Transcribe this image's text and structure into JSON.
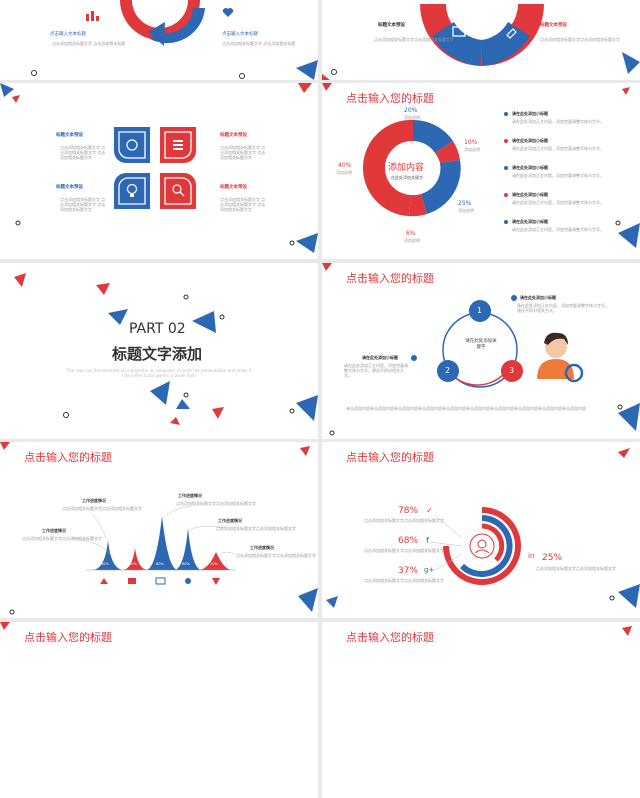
{
  "slide1": {
    "left_label": "点击输入文本标题",
    "right_label": "点击输入文本标题",
    "left_desc": "点击添加相关标题文字 点击添加相关标题",
    "right_desc": "点击添加相关标题文字 点击添加相关标题"
  },
  "slide2": {
    "left_heading": "标题文本预设",
    "left_body": "点击添加相关标题文字点击添加相关标题文字",
    "right_heading": "标题文本预设",
    "right_body": "点击添加相关标题文字点击添加相关标题文字"
  },
  "slide3": {
    "items": [
      {
        "heading": "标题文本预设",
        "body": "点击添加相关标题文字 点击添加相关标题文字 点击添加相关标题文字"
      },
      {
        "heading": "标题文本预设",
        "body": "点击添加相关标题文字 点击添加相关标题文字 点击添加相关标题文字"
      },
      {
        "heading": "标题文本预设",
        "body": "点击添加相关标题文字 点击添加相关标题文字 点击添加相关标题文字"
      },
      {
        "heading": "标题文本预设",
        "body": "点击添加相关标题文字 点击添加相关标题文字 点击添加相关标题文字"
      }
    ]
  },
  "slide4": {
    "title": "点击输入您的标题",
    "center_title": "添加内容",
    "center_sub": "在此处添加关键字",
    "slices": [
      {
        "pct": "20%",
        "label": "添加说明"
      },
      {
        "pct": "10%",
        "label": "添加说明"
      },
      {
        "pct": "25%",
        "label": "添加说明"
      },
      {
        "pct": "6%",
        "label": "添加说明"
      },
      {
        "pct": "40%",
        "label": "添加说明"
      }
    ],
    "list": [
      {
        "heading": "请在此处添加小标题",
        "body": "请在此处添加正文内容，添加完要调整字体与字号。"
      },
      {
        "heading": "请在此处添加小标题",
        "body": "请在此处添加正文内容，添加完要调整字体与字号。"
      },
      {
        "heading": "请在此处添加小标题",
        "body": "请在此处添加正文内容，添加完要调整字体与字号。"
      },
      {
        "heading": "请在此处添加小标题",
        "body": "请在此处添加正文内容，添加完要调整字体与字号。"
      },
      {
        "heading": "请在此处添加小标题",
        "body": "请在此处添加正文内容，添加完要调整字体与字号。"
      }
    ],
    "colors": {
      "red": "#e0383b",
      "blue": "#2c68b3"
    }
  },
  "slide5": {
    "part": "PART 02",
    "heading": "标题文字添加",
    "sub": "The user can demonstrate on a projector or computer, or print the presentation and make it into a film to be used in a wider field"
  },
  "slide6": {
    "title": "点击输入您的标题",
    "center": "请在此处添加关键字",
    "nodes": [
      "1",
      "2",
      "3"
    ],
    "right_heading": "请在此处添加小标题",
    "right_body": "请在此处添加正文内容，添加完要调整字体与字号。建议不再对相关方式。",
    "left_heading": "请在此处添加小标题",
    "left_body": "请在此处添加正文内容，添加完要调整字体与字号。建议不再对相关方式。",
    "footer": "单击添加内容单击添加内容单击添加内容单击添加内容单击添加内容单击添加内容单击添加内容单击添加内容单击添加内容单击添加内容"
  },
  "slide7": {
    "title": "点击输入您的标题",
    "labels": [
      {
        "heading": "工作进度情况",
        "body": "点击添加相关标题文字点击添加相关标题文字"
      },
      {
        "heading": "工作进度情况",
        "body": "点击添加相关标题文字点击添加相关标题文字"
      },
      {
        "heading": "工作进度情况",
        "body": "点击添加相关标题文字点击添加相关标题文字"
      },
      {
        "heading": "工作进度情况",
        "body": "点击添加相关标题文字点击添加相关标题文字"
      },
      {
        "heading": "工作进度情况",
        "body": "点击添加相关标题文字点击添加相关标题文字"
      }
    ],
    "peaks": [
      "40%",
      "30%",
      "80%",
      "60%",
      "20%"
    ]
  },
  "slide8": {
    "title": "点击输入您的标题",
    "stats": [
      {
        "pct": "78%",
        "icon": "twitter-icon"
      },
      {
        "pct": "68%",
        "icon": "facebook-icon"
      },
      {
        "pct": "37%",
        "icon": "google-plus-icon"
      },
      {
        "pct": "25%",
        "icon": "linkedin-icon"
      }
    ],
    "desc": "点击添加相关标题文字点击添加相关标题文字"
  },
  "slide9": {
    "title": "点击输入您的标题"
  },
  "slide10": {
    "title": "点击输入您的标题"
  }
}
